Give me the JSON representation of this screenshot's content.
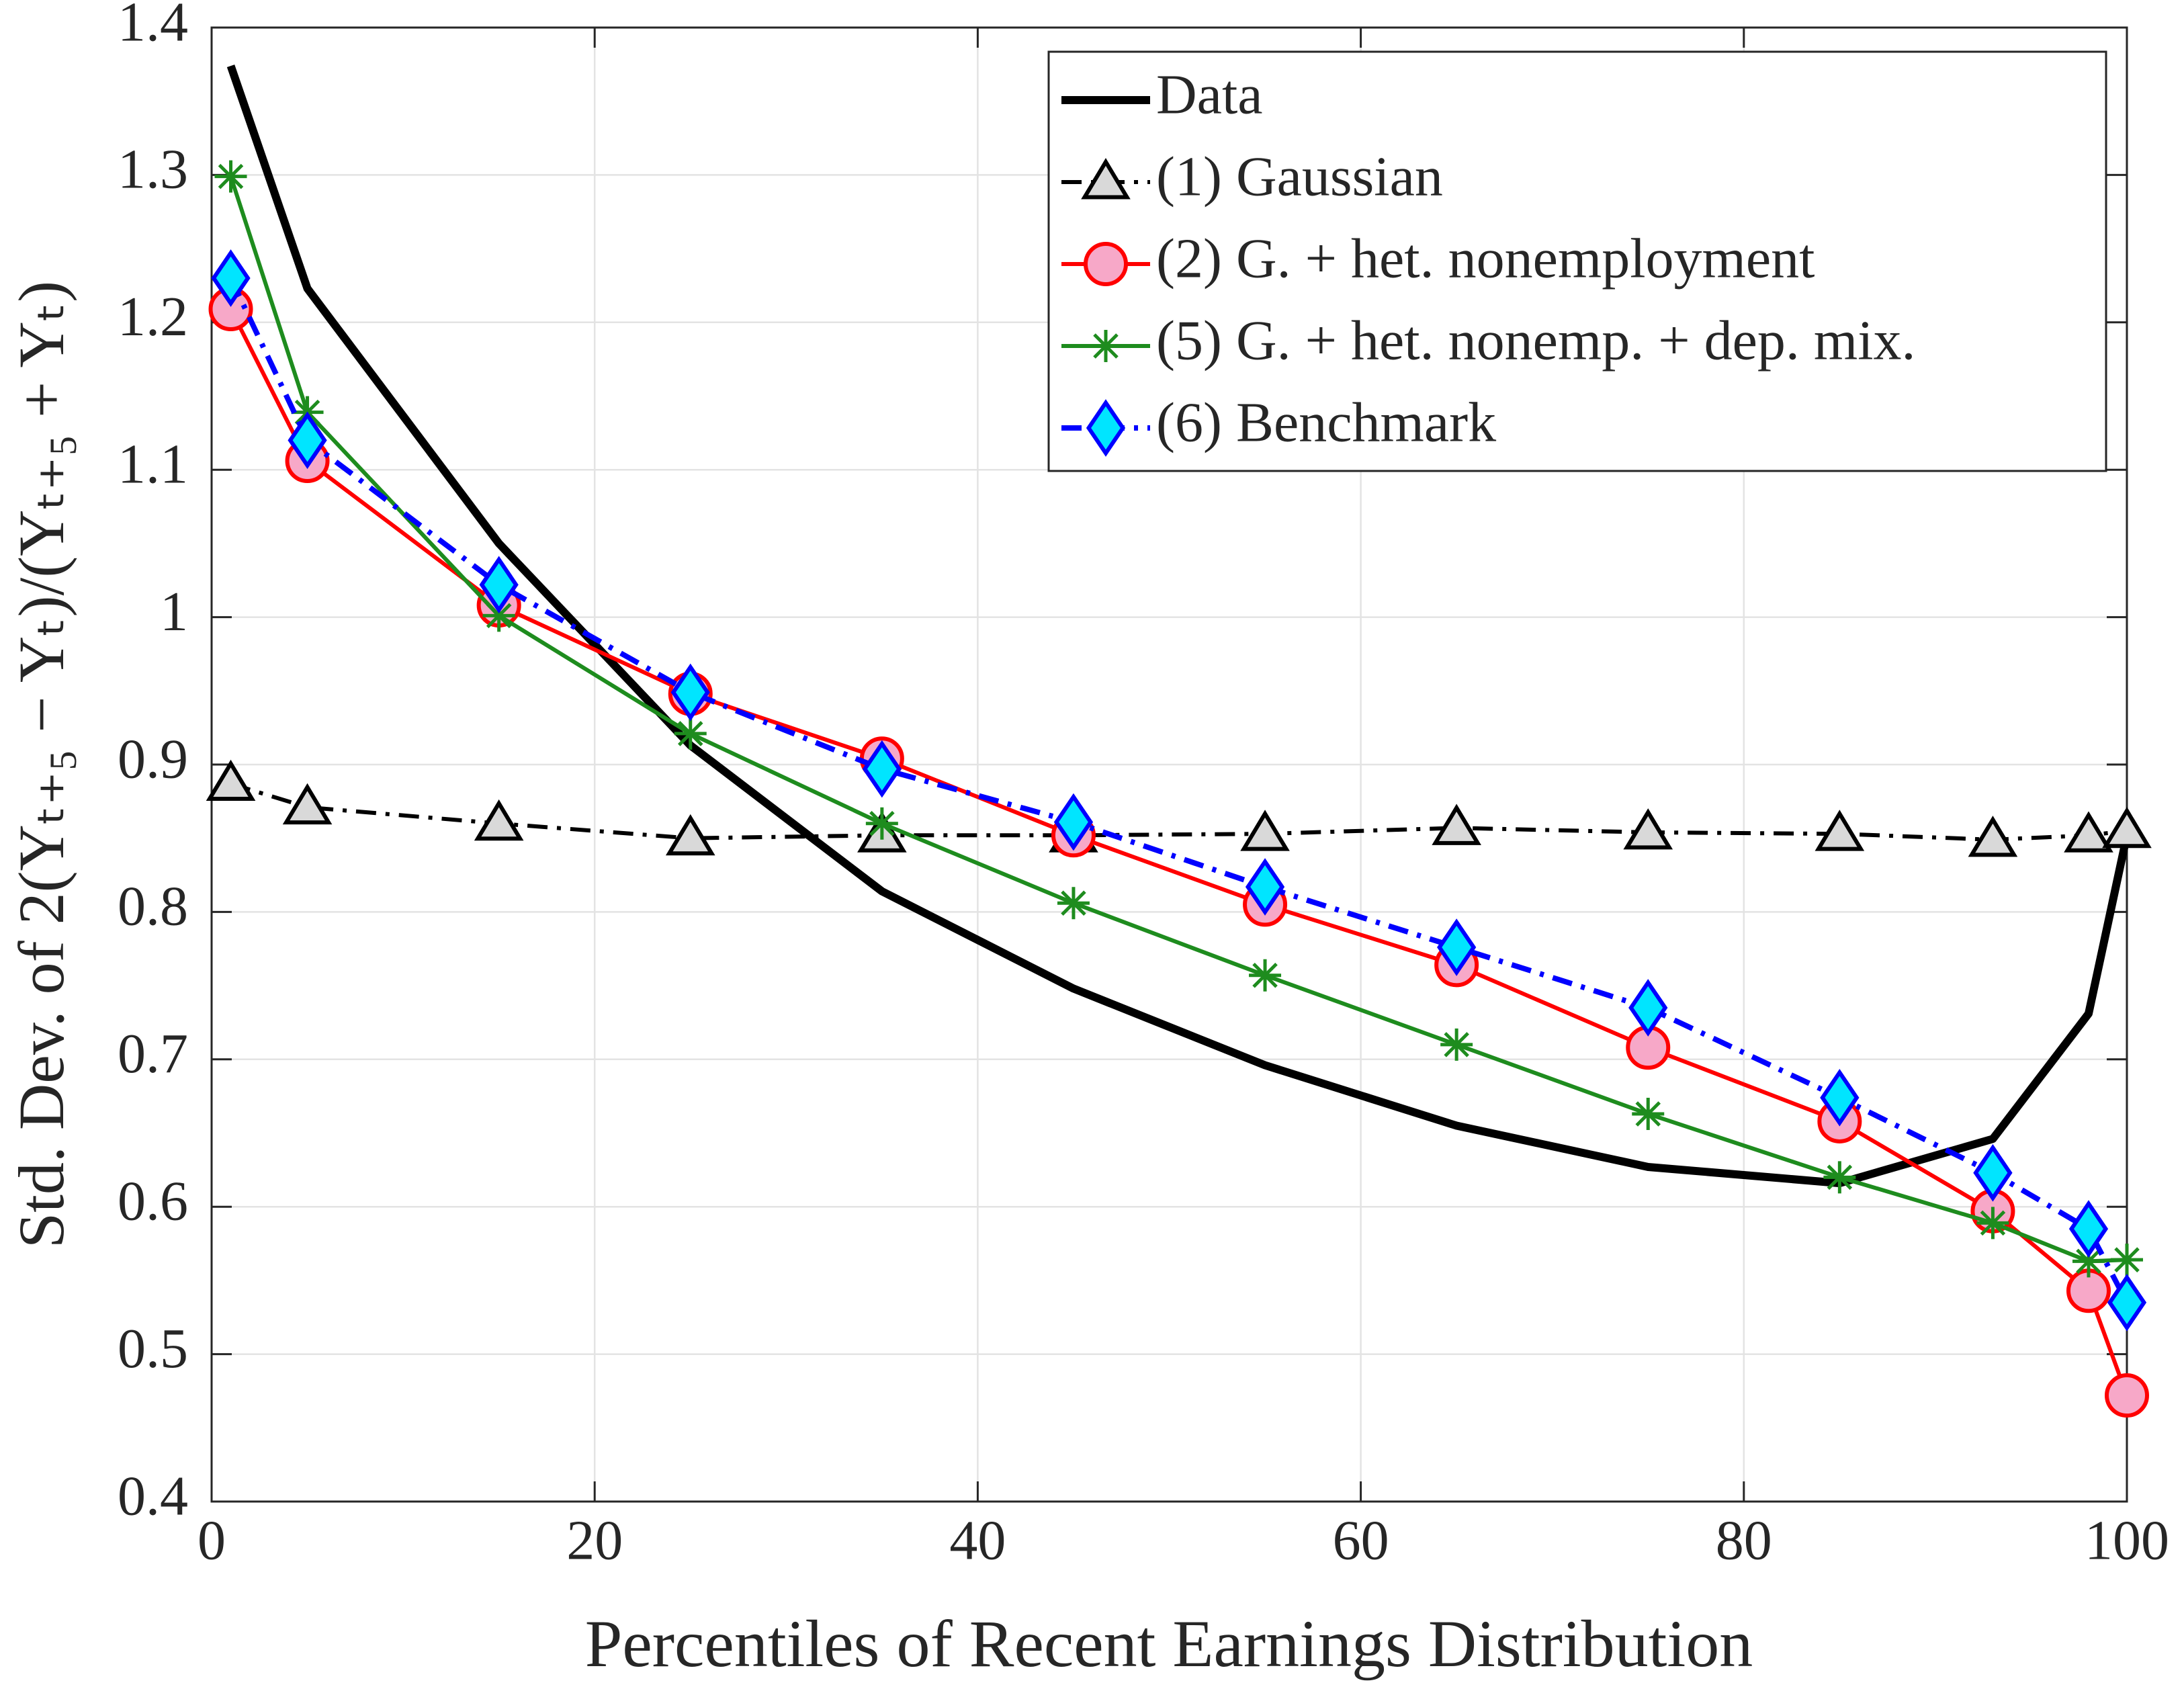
{
  "chart_data": {
    "type": "line",
    "xlabel": "Percentiles of Recent Earnings Distribution",
    "ylabel": "Std. Dev. of 2(Yₜ₊₅ − Yₜ)/(Yₜ₊₅ + Yₜ)",
    "x": [
      1,
      5,
      15,
      25,
      35,
      45,
      55,
      65,
      75,
      85,
      93,
      98,
      100
    ],
    "series": [
      {
        "name": "Data",
        "color": "#000000",
        "marker": "none",
        "dash": "solid",
        "width": 12,
        "values": [
          1.374,
          1.223,
          1.05,
          0.913,
          0.814,
          0.748,
          0.696,
          0.655,
          0.627,
          0.616,
          0.646,
          0.731,
          0.852
        ]
      },
      {
        "name": "(1) Gaussian",
        "color": "#000000",
        "marker": "triangle",
        "marker_fill": "#d9d9d9",
        "dash": "dashdot",
        "width": 6,
        "values": [
          0.887,
          0.871,
          0.86,
          0.85,
          0.852,
          0.852,
          0.853,
          0.857,
          0.854,
          0.853,
          0.849,
          0.852,
          0.855
        ]
      },
      {
        "name": "(2) G. + het. nonemployment",
        "color": "#ff0000",
        "marker": "circle",
        "marker_fill": "#f7a8c8",
        "dash": "solid",
        "width": 6,
        "values": [
          1.209,
          1.106,
          1.008,
          0.948,
          0.904,
          0.852,
          0.805,
          0.764,
          0.708,
          0.658,
          0.597,
          0.543,
          0.472
        ]
      },
      {
        "name": "(5) G. + het. nonemp. + dep. mix.",
        "color": "#1e8c1e",
        "marker": "asterisk",
        "dash": "solid",
        "width": 6,
        "values": [
          1.299,
          1.139,
          1.001,
          0.921,
          0.86,
          0.806,
          0.757,
          0.71,
          0.663,
          0.62,
          0.589,
          0.563,
          0.564
        ]
      },
      {
        "name": "(6) Benchmark",
        "color": "#0000ff",
        "marker": "diamond",
        "marker_fill": "#00e5ff",
        "dash": "dashdot",
        "width": 8,
        "values": [
          1.23,
          1.12,
          1.022,
          0.949,
          0.897,
          0.861,
          0.817,
          0.776,
          0.735,
          0.674,
          0.623,
          0.585,
          0.535
        ]
      }
    ],
    "xlim": [
      0,
      100
    ],
    "xticks": [
      0,
      20,
      40,
      60,
      80,
      100
    ],
    "ylim": [
      0.4,
      1.4
    ],
    "yticks": [
      0.4,
      0.5,
      0.6,
      0.7,
      0.8,
      0.9,
      1,
      1.1,
      1.2,
      1.3,
      1.4
    ],
    "grid": true,
    "legend": "upper right"
  }
}
